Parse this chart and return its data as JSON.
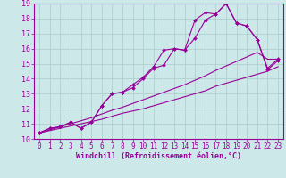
{
  "xlabel": "Windchill (Refroidissement éolien,°C)",
  "xlim": [
    -0.5,
    23.5
  ],
  "ylim": [
    10,
    19
  ],
  "xticks": [
    0,
    1,
    2,
    3,
    4,
    5,
    6,
    7,
    8,
    9,
    10,
    11,
    12,
    13,
    14,
    15,
    16,
    17,
    18,
    19,
    20,
    21,
    22,
    23
  ],
  "yticks": [
    10,
    11,
    12,
    13,
    14,
    15,
    16,
    17,
    18,
    19
  ],
  "background_color": "#cce8e8",
  "grid_color": "#aacccc",
  "line_color": "#990099",
  "lines": [
    {
      "x": [
        0,
        1,
        2,
        3,
        4,
        5,
        6,
        7,
        8,
        9,
        10,
        11,
        12,
        13,
        14,
        15,
        16,
        17,
        18,
        19,
        20,
        21,
        22,
        23
      ],
      "y": [
        10.4,
        10.7,
        10.8,
        11.1,
        10.7,
        11.1,
        12.2,
        13.0,
        13.1,
        13.6,
        14.1,
        14.8,
        15.9,
        16.0,
        15.9,
        17.9,
        18.4,
        18.3,
        19.0,
        17.7,
        17.5,
        16.6,
        14.7,
        15.3
      ],
      "markers": true
    },
    {
      "x": [
        0,
        1,
        2,
        3,
        4,
        5,
        6,
        7,
        8,
        9,
        10,
        11,
        12,
        13,
        14,
        15,
        16,
        17,
        18,
        19,
        20,
        21,
        22,
        23
      ],
      "y": [
        10.4,
        10.7,
        10.8,
        11.1,
        10.7,
        11.1,
        12.2,
        13.0,
        13.1,
        13.4,
        14.0,
        14.7,
        14.9,
        16.0,
        15.9,
        16.7,
        17.9,
        18.3,
        19.0,
        17.7,
        17.5,
        16.6,
        14.6,
        15.2
      ],
      "markers": true
    },
    {
      "x": [
        0,
        1,
        2,
        3,
        4,
        5,
        6,
        7,
        8,
        9,
        10,
        11,
        12,
        13,
        14,
        15,
        16,
        17,
        18,
        19,
        20,
        21,
        22,
        23
      ],
      "y": [
        10.4,
        10.55,
        10.7,
        10.85,
        11.0,
        11.15,
        11.3,
        11.5,
        11.7,
        11.85,
        12.0,
        12.2,
        12.4,
        12.6,
        12.8,
        13.0,
        13.2,
        13.5,
        13.7,
        13.9,
        14.1,
        14.3,
        14.5,
        14.8
      ],
      "markers": false
    },
    {
      "x": [
        0,
        1,
        2,
        3,
        4,
        5,
        6,
        7,
        8,
        9,
        10,
        11,
        12,
        13,
        14,
        15,
        16,
        17,
        18,
        19,
        20,
        21,
        22,
        23
      ],
      "y": [
        10.4,
        10.6,
        10.8,
        11.0,
        11.2,
        11.4,
        11.65,
        11.9,
        12.1,
        12.35,
        12.6,
        12.85,
        13.1,
        13.35,
        13.6,
        13.9,
        14.2,
        14.55,
        14.85,
        15.15,
        15.45,
        15.75,
        15.3,
        15.3
      ],
      "markers": false
    }
  ]
}
